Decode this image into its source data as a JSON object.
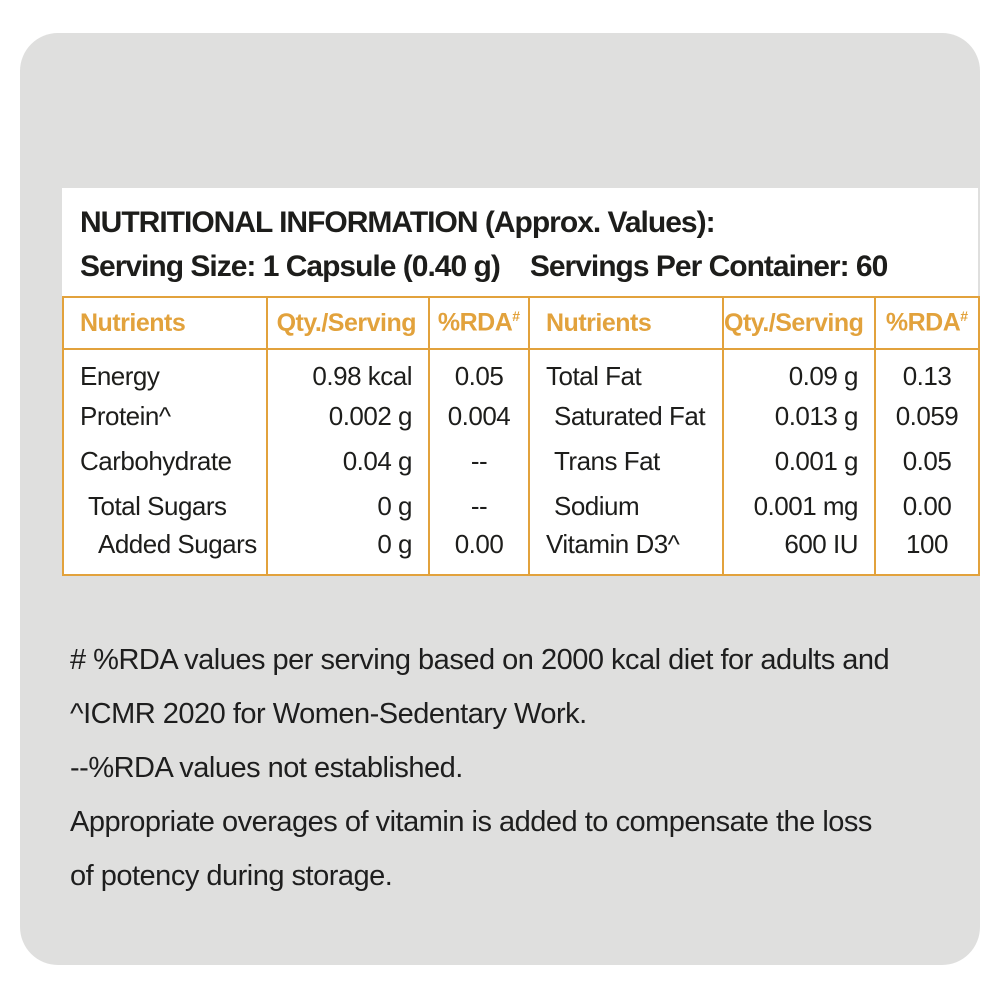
{
  "colors": {
    "accent": "#E2A23C",
    "card_background": "#DFDFDE",
    "text": "#1D1D1B"
  },
  "panel": {
    "title": "NUTRITIONAL INFORMATION (Approx. Values):",
    "serving_size": "Serving Size: 1 Capsule (0.40 g)",
    "servings_per_container": "Servings Per Container: 60"
  },
  "table": {
    "headers": {
      "nutrients": "Nutrients",
      "qty": "Qty./Serving",
      "rda": "%RDA",
      "rda_sup": "#"
    },
    "left_rows": [
      {
        "nutrient": "Energy",
        "qty": "0.98 kcal",
        "rda": "0.05",
        "indent": 0
      },
      {
        "nutrient": "Protein^",
        "qty": "0.002 g",
        "rda": "0.004",
        "indent": 0
      },
      {
        "nutrient": "Carbohydrate",
        "qty": "0.04 g",
        "rda": "--",
        "indent": 0
      },
      {
        "nutrient": "Total Sugars",
        "qty": "0 g",
        "rda": "--",
        "indent": 1
      },
      {
        "nutrient": "Added Sugars",
        "qty": "0 g",
        "rda": "0.00",
        "indent": 2
      }
    ],
    "right_rows": [
      {
        "nutrient": "Total Fat",
        "qty": "0.09 g",
        "rda": "0.13",
        "indent": 0
      },
      {
        "nutrient": "Saturated Fat",
        "qty": "0.013 g",
        "rda": "0.059",
        "indent": 1
      },
      {
        "nutrient": "Trans Fat",
        "qty": "0.001 g",
        "rda": "0.05",
        "indent": 1
      },
      {
        "nutrient": "Sodium",
        "qty": "0.001 mg",
        "rda": "0.00",
        "indent": 1
      },
      {
        "nutrient": "Vitamin D3^",
        "qty": "600 IU",
        "rda": "100",
        "indent": 0
      }
    ]
  },
  "notes": {
    "lines": [
      "# %RDA values per serving based on 2000 kcal diet for adults and",
      "^ICMR 2020 for Women-Sedentary Work.",
      "--%RDA values not established.",
      "Appropriate overages of vitamin is added to compensate the loss",
      "of potency during storage."
    ]
  }
}
